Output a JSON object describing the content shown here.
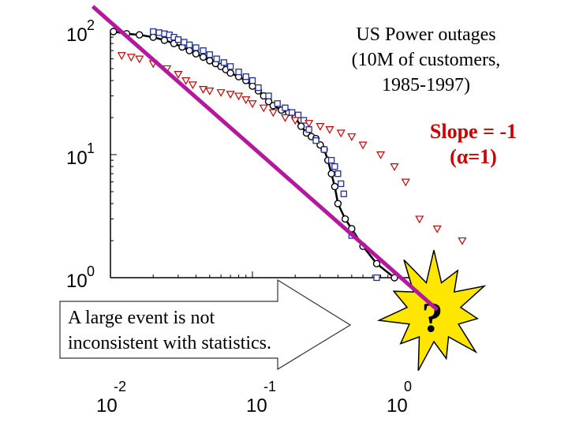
{
  "chart_data": {
    "type": "scatter",
    "title_lines": [
      "US Power outages",
      "(10M of customers,",
      "1985-1997)"
    ],
    "x_scale": "log",
    "y_scale": "log",
    "x_ticks": [
      {
        "base": "10",
        "exp": "-2",
        "value": 0.01
      },
      {
        "base": "10",
        "exp": "-1",
        "value": 0.1
      },
      {
        "base": "10",
        "exp": "0",
        "value": 1
      }
    ],
    "y_ticks": [
      {
        "base": "10",
        "exp": "0",
        "value": 1
      },
      {
        "base": "10",
        "exp": "1",
        "value": 10
      },
      {
        "base": "10",
        "exp": "2",
        "value": 100
      }
    ],
    "series": [
      {
        "marker": "circle-line",
        "color": "#000000",
        "points": [
          [
            0.0105,
            100
          ],
          [
            0.013,
            96
          ],
          [
            0.016,
            94
          ],
          [
            0.02,
            90
          ],
          [
            0.024,
            85
          ],
          [
            0.028,
            80
          ],
          [
            0.032,
            75
          ],
          [
            0.036,
            70
          ],
          [
            0.04,
            66
          ],
          [
            0.045,
            62
          ],
          [
            0.05,
            58
          ],
          [
            0.055,
            55
          ],
          [
            0.06,
            52
          ],
          [
            0.065,
            49
          ],
          [
            0.07,
            46
          ],
          [
            0.08,
            43
          ],
          [
            0.09,
            40
          ],
          [
            0.1,
            36
          ],
          [
            0.11,
            33
          ],
          [
            0.12,
            30
          ],
          [
            0.13,
            27
          ],
          [
            0.14,
            25
          ],
          [
            0.16,
            23
          ],
          [
            0.18,
            22
          ],
          [
            0.2,
            20
          ],
          [
            0.22,
            17
          ],
          [
            0.24,
            15
          ],
          [
            0.26,
            14
          ],
          [
            0.28,
            13.5
          ],
          [
            0.3,
            12
          ],
          [
            0.32,
            11
          ],
          [
            0.34,
            9
          ],
          [
            0.36,
            7
          ],
          [
            0.38,
            5.5
          ],
          [
            0.4,
            4
          ],
          [
            0.45,
            3
          ],
          [
            0.5,
            2.5
          ],
          [
            0.6,
            1.8
          ],
          [
            0.75,
            1.3
          ],
          [
            1.0,
            1
          ]
        ]
      },
      {
        "marker": "square",
        "color": "#1f2f9f",
        "points": [
          [
            0.02,
            100
          ],
          [
            0.022,
            98
          ],
          [
            0.024,
            96
          ],
          [
            0.026,
            94
          ],
          [
            0.028,
            90
          ],
          [
            0.03,
            86
          ],
          [
            0.033,
            82
          ],
          [
            0.036,
            78
          ],
          [
            0.04,
            74
          ],
          [
            0.045,
            70
          ],
          [
            0.05,
            65
          ],
          [
            0.056,
            60
          ],
          [
            0.063,
            56
          ],
          [
            0.07,
            52
          ],
          [
            0.08,
            47
          ],
          [
            0.09,
            43
          ],
          [
            0.1,
            40
          ],
          [
            0.11,
            35
          ],
          [
            0.13,
            30
          ],
          [
            0.15,
            26
          ],
          [
            0.17,
            24
          ],
          [
            0.19,
            22
          ],
          [
            0.21,
            21
          ],
          [
            0.23,
            19
          ],
          [
            0.25,
            16
          ],
          [
            0.28,
            13
          ],
          [
            0.32,
            11
          ],
          [
            0.36,
            9
          ],
          [
            0.38,
            8
          ],
          [
            0.4,
            7
          ],
          [
            0.42,
            5.8
          ],
          [
            0.44,
            4.8
          ],
          [
            0.5,
            2.2
          ],
          [
            0.75,
            1
          ]
        ]
      },
      {
        "marker": "triangle-down",
        "color": "#cc0000",
        "points": [
          [
            0.012,
            64
          ],
          [
            0.014,
            62
          ],
          [
            0.016,
            60
          ],
          [
            0.02,
            55
          ],
          [
            0.025,
            50
          ],
          [
            0.03,
            45
          ],
          [
            0.034,
            40
          ],
          [
            0.038,
            37
          ],
          [
            0.045,
            34
          ],
          [
            0.05,
            33
          ],
          [
            0.06,
            32
          ],
          [
            0.07,
            31
          ],
          [
            0.08,
            30
          ],
          [
            0.09,
            28
          ],
          [
            0.1,
            26
          ],
          [
            0.12,
            24
          ],
          [
            0.14,
            22
          ],
          [
            0.17,
            20
          ],
          [
            0.2,
            19
          ],
          [
            0.25,
            18
          ],
          [
            0.3,
            17
          ],
          [
            0.35,
            16
          ],
          [
            0.42,
            15
          ],
          [
            0.5,
            14
          ],
          [
            0.6,
            12
          ],
          [
            0.8,
            10
          ],
          [
            1.0,
            8
          ],
          [
            1.2,
            6
          ],
          [
            1.5,
            3
          ],
          [
            2.0,
            2.5
          ],
          [
            3.0,
            2
          ]
        ]
      }
    ],
    "fit_line": {
      "label_lines": [
        "Slope = -1",
        "(α=1)"
      ],
      "slope": -1,
      "color": "#b5179e",
      "from": [
        0.0075,
        160
      ],
      "to": [
        2.0,
        0.55
      ]
    }
  },
  "callout": {
    "lines": [
      "A large event is not",
      "inconsistent with statistics."
    ]
  },
  "burst": {
    "symbol": "?"
  },
  "colors": {
    "burst_fill": "#ffe600",
    "burst_edge": "#000000",
    "fit_line": "#b5179e",
    "slope_text": "#cc0000"
  }
}
